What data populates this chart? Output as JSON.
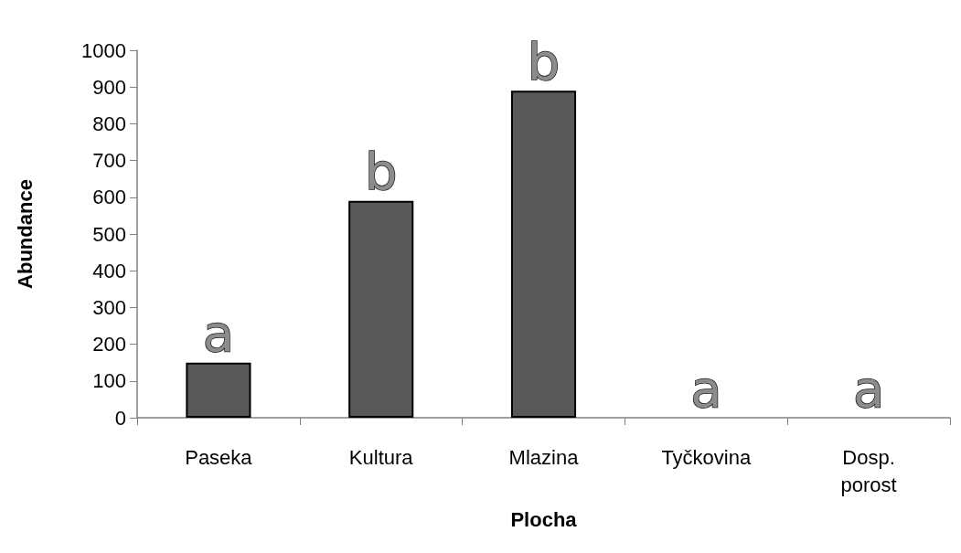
{
  "chart_data": {
    "type": "bar",
    "xlabel": "Plocha",
    "ylabel": "Abundance",
    "categories": [
      "Paseka",
      "Kultura",
      "Mlazina",
      "Tyčkovina",
      "Dosp.\nporost"
    ],
    "values": [
      150,
      590,
      890,
      0,
      0
    ],
    "color": "#595959",
    "ylim": [
      0,
      1000
    ],
    "yticks": [
      0,
      100,
      200,
      300,
      400,
      500,
      600,
      700,
      800,
      900,
      {
        "value": 1000,
        "label": "1000"
      }
    ],
    "grid": false,
    "annotations": [
      "a",
      "b",
      "b",
      "a",
      "a"
    ]
  }
}
